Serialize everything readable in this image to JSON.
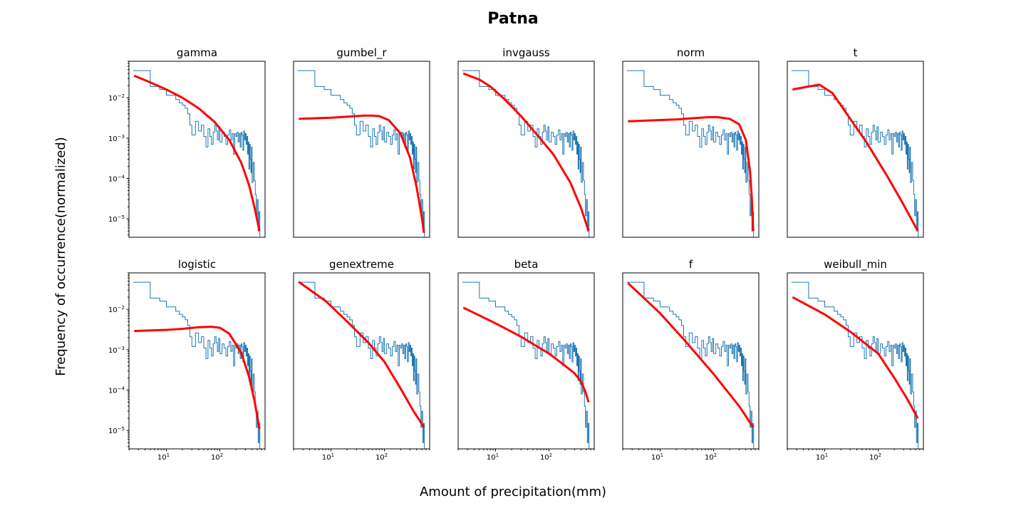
{
  "figure": {
    "title": "Patna",
    "xlabel": "Amount of precipitation(mm)",
    "ylabel": "Frequency of occurrence(normalized)"
  },
  "colors": {
    "histogram": "#1f77b4",
    "fit": "#ff0000",
    "axes": "#000000",
    "background": "#ffffff"
  },
  "chart_data": {
    "type": "line",
    "layout": "2 rows x 5 columns of log-log panels; histogram step line with fitted distribution curve",
    "xscale": "log",
    "yscale": "log",
    "xlim": [
      2,
      700
    ],
    "ylim": [
      3.5e-06,
      0.08
    ],
    "xticks": [
      {
        "value": 10,
        "base": "10",
        "exp": "1"
      },
      {
        "value": 100,
        "base": "10",
        "exp": "2"
      }
    ],
    "yticks": [
      {
        "value": 0.01,
        "base": "10",
        "exp": "−2"
      },
      {
        "value": 0.001,
        "base": "10",
        "exp": "−3"
      },
      {
        "value": 0.0001,
        "base": "10",
        "exp": "−4"
      },
      {
        "value": 1e-05,
        "base": "10",
        "exp": "−5"
      }
    ],
    "histogram": {
      "name": "observed",
      "x": [
        2.4,
        5.0,
        5.0,
        7.5,
        7.5,
        10,
        10,
        12.5,
        12.5,
        15,
        15,
        17.5,
        17.5,
        20,
        20,
        22.5,
        22.5,
        25,
        25,
        27.5,
        27.5,
        30,
        30,
        35,
        35,
        40,
        40,
        45,
        45,
        50,
        50,
        55,
        55,
        60,
        60,
        65,
        65,
        70,
        70,
        75,
        75,
        80,
        80,
        85,
        85,
        90,
        90,
        95,
        95,
        100,
        100,
        110,
        110,
        120,
        120,
        130,
        130,
        140,
        140,
        150,
        150,
        160,
        160,
        170,
        170,
        180,
        180,
        190,
        190,
        200,
        200,
        210,
        210,
        220,
        220,
        230,
        230,
        240,
        240,
        250,
        250,
        260,
        260,
        270,
        270,
        280,
        280,
        290,
        290,
        300,
        300,
        310,
        310,
        320,
        320,
        330,
        330,
        340,
        340,
        350,
        350,
        360,
        360,
        370,
        370,
        380,
        380,
        390,
        390,
        400,
        400,
        420,
        420,
        440,
        440,
        460,
        460,
        480,
        480,
        500,
        500,
        520,
        520,
        540,
        540,
        560,
        560,
        580
      ],
      "y": [
        0.047,
        0.047,
        0.019,
        0.019,
        0.016,
        0.016,
        0.0115,
        0.0115,
        0.0115,
        0.0115,
        0.009,
        0.009,
        0.0075,
        0.0075,
        0.0065,
        0.0065,
        0.0055,
        0.0055,
        0.004,
        0.004,
        0.0021,
        0.0021,
        0.0012,
        0.0012,
        0.0026,
        0.0026,
        0.0015,
        0.0015,
        0.0021,
        0.0021,
        0.0011,
        0.0011,
        0.0006,
        0.0006,
        0.0017,
        0.0017,
        0.0011,
        0.0011,
        0.0007,
        0.0007,
        0.0014,
        0.0014,
        0.0021,
        0.0021,
        0.0015,
        0.0015,
        0.0009,
        0.0009,
        0.0019,
        0.0019,
        0.0008,
        0.0008,
        0.0014,
        0.0014,
        0.0011,
        0.0011,
        0.0007,
        0.0007,
        0.0012,
        0.0012,
        0.0016,
        0.0016,
        0.0009,
        0.0009,
        0.0013,
        0.0013,
        0.0004,
        0.0004,
        0.0013,
        0.0013,
        0.0011,
        0.0011,
        0.0014,
        0.0014,
        0.0008,
        0.0008,
        0.0013,
        0.0013,
        0.0006,
        0.0006,
        0.0014,
        0.0014,
        0.0012,
        0.0012,
        0.0005,
        0.0005,
        0.0015,
        0.0015,
        0.0009,
        0.0009,
        0.0013,
        0.0013,
        0.0007,
        0.0007,
        0.0011,
        0.0011,
        0.0004,
        0.0004,
        0.0008,
        0.0008,
        0.00017,
        0.00017,
        0.0007,
        0.0007,
        0.0003,
        0.0003,
        0.00014,
        0.00014,
        0.0006,
        0.0006,
        8e-05,
        8e-05,
        0.00025,
        0.00025,
        9e-05,
        9e-05,
        4e-05,
        4e-05,
        1.2e-05,
        1.2e-05,
        3e-05,
        3e-05,
        5e-06,
        5e-06,
        1.5e-05,
        1.5e-05,
        3e-06,
        3e-06
      ]
    },
    "panels": [
      {
        "title": "gamma",
        "fit_x": [
          2.5,
          5,
          10,
          20,
          40,
          80,
          150,
          250,
          350,
          450,
          550
        ],
        "fit_y": [
          0.035,
          0.024,
          0.016,
          0.01,
          0.0055,
          0.0025,
          0.0009,
          0.00025,
          7e-05,
          1.8e-05,
          5e-06
        ]
      },
      {
        "title": "gumbel_r",
        "fit_x": [
          2.5,
          5,
          10,
          20,
          40,
          60,
          80,
          120,
          200,
          300,
          400,
          500,
          550
        ],
        "fit_y": [
          0.003,
          0.0031,
          0.0032,
          0.0034,
          0.0036,
          0.0036,
          0.0035,
          0.0028,
          0.0013,
          0.00033,
          6e-05,
          1.1e-05,
          4.5e-06
        ]
      },
      {
        "title": "invgauss",
        "fit_x": [
          2.5,
          5,
          8,
          15,
          30,
          60,
          120,
          250,
          400,
          550
        ],
        "fit_y": [
          0.04,
          0.028,
          0.019,
          0.009,
          0.0035,
          0.0012,
          0.0004,
          8e-05,
          1.8e-05,
          5e-06
        ]
      },
      {
        "title": "norm",
        "fit_x": [
          2.5,
          5,
          10,
          20,
          40,
          80,
          120,
          200,
          300,
          400,
          480,
          520,
          550
        ],
        "fit_y": [
          0.0026,
          0.0027,
          0.0028,
          0.0029,
          0.0031,
          0.0033,
          0.0033,
          0.003,
          0.0022,
          0.0009,
          0.00015,
          3e-05,
          5e-06
        ]
      },
      {
        "title": "t",
        "fit_x": [
          2.5,
          5,
          8,
          14,
          30,
          60,
          150,
          300,
          550
        ],
        "fit_y": [
          0.016,
          0.019,
          0.021,
          0.013,
          0.003,
          0.0008,
          0.00011,
          2.2e-05,
          5e-06
        ]
      },
      {
        "title": "logistic",
        "fit_x": [
          2.5,
          5,
          10,
          20,
          40,
          70,
          100,
          150,
          250,
          350,
          450,
          550
        ],
        "fit_y": [
          0.0029,
          0.003,
          0.0031,
          0.0033,
          0.0036,
          0.0037,
          0.0035,
          0.0025,
          0.00085,
          0.00022,
          5e-05,
          1.1e-05
        ]
      },
      {
        "title": "genextreme",
        "fit_x": [
          2.5,
          8,
          20,
          50,
          100,
          200,
          350,
          550
        ],
        "fit_y": [
          0.048,
          0.016,
          0.005,
          0.0015,
          0.0005,
          0.00011,
          3e-05,
          1.2e-05
        ]
      },
      {
        "title": "beta",
        "fit_x": [
          2.5,
          10,
          30,
          100,
          200,
          300,
          400,
          480,
          550
        ],
        "fit_y": [
          0.011,
          0.0045,
          0.0021,
          0.0008,
          0.0004,
          0.00026,
          0.00016,
          9e-05,
          5e-05
        ]
      },
      {
        "title": "f",
        "fit_x": [
          2.5,
          10,
          30,
          100,
          300,
          550
        ],
        "fit_y": [
          0.045,
          0.008,
          0.0016,
          0.00025,
          4e-05,
          1.2e-05
        ]
      },
      {
        "title": "weibull_min",
        "fit_x": [
          2.5,
          10,
          30,
          100,
          200,
          350,
          550
        ],
        "fit_y": [
          0.02,
          0.0075,
          0.0028,
          0.0008,
          0.0002,
          6e-05,
          2e-05
        ]
      }
    ]
  }
}
